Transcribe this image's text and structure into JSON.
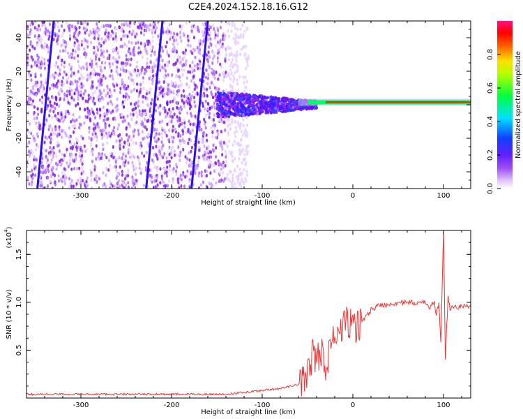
{
  "title": "C2E4.2024.152.18.16.G12",
  "colorbar": {
    "label": "Normalized spectral amplitude",
    "ticks": [
      "0.0",
      "0.2",
      "0.4",
      "0.6",
      "0.8"
    ],
    "tick_values": [
      0.0,
      0.2,
      0.4,
      0.6,
      0.8
    ],
    "range": [
      0,
      1
    ]
  },
  "chart_data": [
    {
      "type": "heatmap",
      "title": "",
      "xlabel": "Height of straight line (km)",
      "ylabel": "Frequency (Hz)",
      "xlim": [
        -360,
        130
      ],
      "ylim": [
        -50,
        50
      ],
      "xticks": [
        -300,
        -200,
        -100,
        0,
        100
      ],
      "xtick_labels": [
        "-300",
        "-200",
        "-100",
        "0",
        "100"
      ],
      "yticks": [
        -40,
        -20,
        0,
        20,
        40
      ],
      "ytick_labels": [
        "-40",
        "-20",
        "0",
        "20",
        "40"
      ],
      "colormap": [
        "#ffffff",
        "#d9b3ff",
        "#8a2be2",
        "#3020ff",
        "#00ffff",
        "#00ff00",
        "#ffff00",
        "#ff8000",
        "#ff0000",
        "#ff0080"
      ],
      "features": {
        "diagonal_tracks_x_at_top": [
          -330,
          -210,
          -160
        ],
        "noise_region_x": [
          -360,
          -140
        ],
        "carrier_line_freq_hz": 1.5,
        "carrier_start_x": -150
      }
    },
    {
      "type": "line",
      "title": "",
      "xlabel": "Height of straight line (km)",
      "ylabel": "SNR (10 * v/v)",
      "y_scale_label": "(x10",
      "y_scale_exp": "4",
      "xlim": [
        -360,
        130
      ],
      "ylim": [
        0,
        1.75
      ],
      "xticks": [
        -300,
        -200,
        -100,
        0,
        100
      ],
      "xtick_labels": [
        "-300",
        "-200",
        "-100",
        "0",
        "100"
      ],
      "yticks": [
        0.5,
        1.0,
        1.5
      ],
      "ytick_labels": [
        "0.5",
        "1.0",
        "1.5"
      ],
      "color": "#ee3333",
      "series": [
        {
          "x": [
            -360,
            -300,
            -200,
            -140,
            -120,
            -100,
            -80,
            -60,
            -50,
            -45,
            -40,
            -35,
            -30,
            -25,
            -20,
            -15,
            -10,
            -5,
            0,
            10,
            20,
            30,
            40,
            50,
            60,
            70,
            80,
            85,
            90,
            92,
            95,
            97,
            100,
            102,
            105,
            108,
            110,
            115,
            120,
            130
          ],
          "values": [
            0.04,
            0.04,
            0.04,
            0.04,
            0.06,
            0.08,
            0.1,
            0.14,
            0.25,
            0.45,
            0.4,
            0.5,
            0.3,
            0.55,
            0.6,
            0.7,
            0.75,
            0.8,
            0.72,
            0.8,
            0.92,
            0.97,
            0.98,
            1.0,
            0.99,
            1.0,
            0.99,
            0.96,
            1.0,
            0.85,
            1.0,
            0.6,
            1.75,
            0.4,
            1.05,
            0.9,
            0.97,
            0.95,
            0.96,
            0.95
          ]
        }
      ]
    }
  ]
}
